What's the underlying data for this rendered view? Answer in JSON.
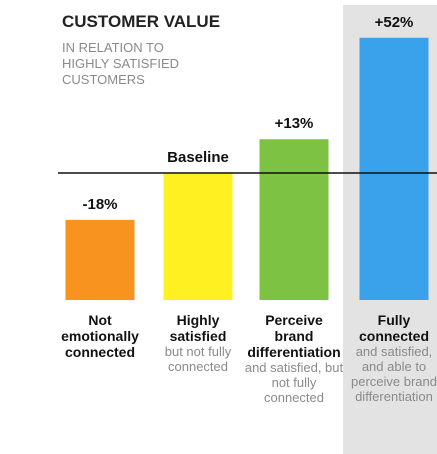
{
  "chart_data": {
    "type": "bar",
    "title": "CUSTOMER VALUE",
    "subtitle": "IN RELATION TO HIGHLY SATISFIED CUSTOMERS",
    "categories": [
      "Not emotionally connected",
      "Highly satisfied",
      "Perceive brand differentiation",
      "Fully connected"
    ],
    "category_notes": [
      null,
      "but not fully connected",
      "and satisfied, but not fully connected",
      "and satisfied, and able to perceive brand differentiation"
    ],
    "values": [
      -18,
      0,
      13,
      52
    ],
    "value_labels": [
      "-18%",
      "Baseline",
      "+13%",
      "+52%"
    ],
    "colors": [
      "#f7931e",
      "#fff022",
      "#7dc242",
      "#3aa2ea"
    ],
    "ylim": [
      -48.8,
      64.6
    ],
    "highlight": 3
  }
}
